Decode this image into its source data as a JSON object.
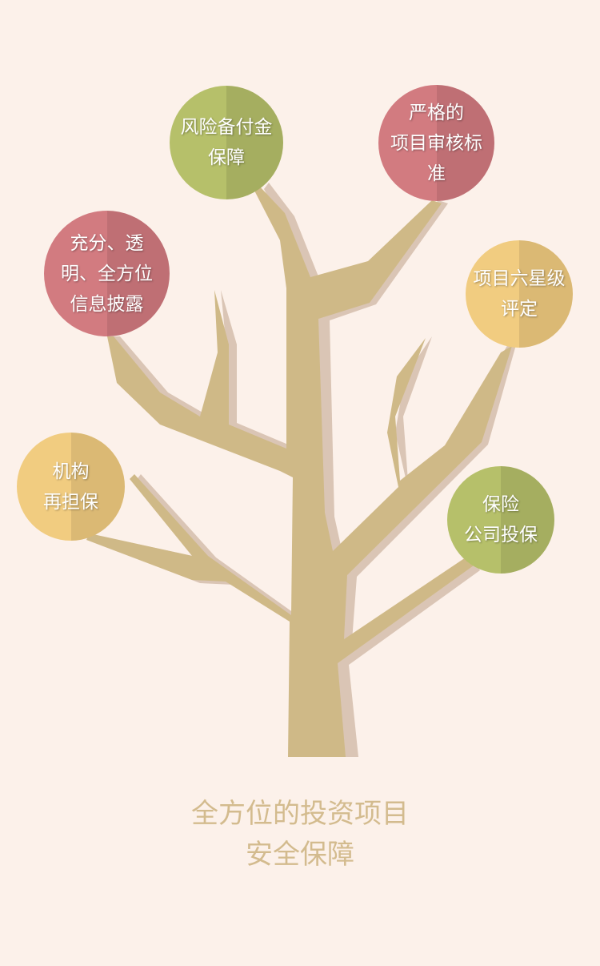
{
  "nodes": [
    {
      "id": "risk-reserve",
      "text": "风险备付金\n保障",
      "color": "green"
    },
    {
      "id": "strict-review",
      "text": "严格的\n项目审核标\n准",
      "color": "red"
    },
    {
      "id": "disclosure",
      "text": "充分、透\n明、全方位\n信息披露",
      "color": "red"
    },
    {
      "id": "six-star",
      "text": "项目六星级\n评定",
      "color": "yellow"
    },
    {
      "id": "guarantee",
      "text": "机构\n再担保",
      "color": "yellow"
    },
    {
      "id": "insurance",
      "text": "保险\n公司投保",
      "color": "green"
    }
  ],
  "caption": {
    "line1": "全方位的投资项目",
    "line2": "安全保障"
  },
  "colors": {
    "background": "#fcf1ea",
    "trunk": "#cfb987",
    "trunk_shadow": "#dac5b5",
    "green": "#b6c06a",
    "red": "#d27b80",
    "yellow": "#f1cc80",
    "caption": "#d3bb8e"
  }
}
